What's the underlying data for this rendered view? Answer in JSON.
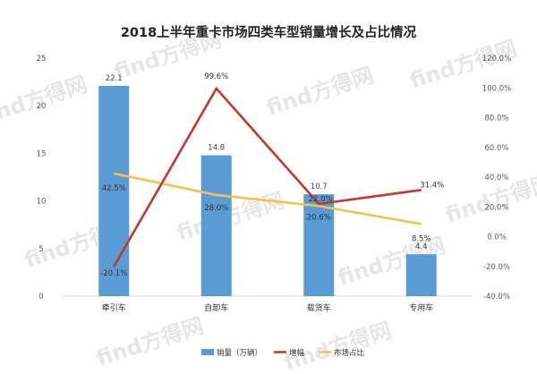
{
  "chart_data": {
    "type": "bar",
    "title": "2018上半年重卡市场四类车型销量增长及占比情况",
    "categories": [
      "牵引车",
      "自卸车",
      "载货车",
      "专用车"
    ],
    "series": [
      {
        "name": "销量（万辆）",
        "kind": "bar",
        "axis": "left",
        "values": [
          22.1,
          14.8,
          10.7,
          4.4
        ],
        "labels": [
          "22.1",
          "14.8",
          "10.7",
          "4.4"
        ]
      },
      {
        "name": "增幅",
        "kind": "line",
        "axis": "right",
        "values": [
          -20.1,
          99.6,
          22.0,
          31.4
        ],
        "labels": [
          "-20.1%",
          "99.6%",
          "22.0%",
          "31.4%"
        ]
      },
      {
        "name": "市场占比",
        "kind": "line",
        "axis": "right",
        "values": [
          42.5,
          28.0,
          20.6,
          8.5
        ],
        "labels": [
          "42.5%",
          "28.0%",
          "20.6%",
          "8.5%"
        ]
      }
    ],
    "y_left": {
      "ylim": [
        0,
        25
      ],
      "ticks": [
        "0",
        "5",
        "10",
        "15",
        "20",
        "25"
      ]
    },
    "y_right": {
      "ylim": [
        -40,
        120
      ],
      "ticks": [
        "-40.0%",
        "-20.0%",
        "0.0%",
        "20.0%",
        "40.0%",
        "60.0%",
        "80.0%",
        "100.0%",
        "120.0%"
      ]
    },
    "legend_position": "bottom",
    "grid": false,
    "colors": {
      "bar": "#5b9bd5",
      "growth": "#c0392b",
      "share": "#f2c14e",
      "axis_text": "#595959"
    }
  },
  "watermark": "find方得网"
}
